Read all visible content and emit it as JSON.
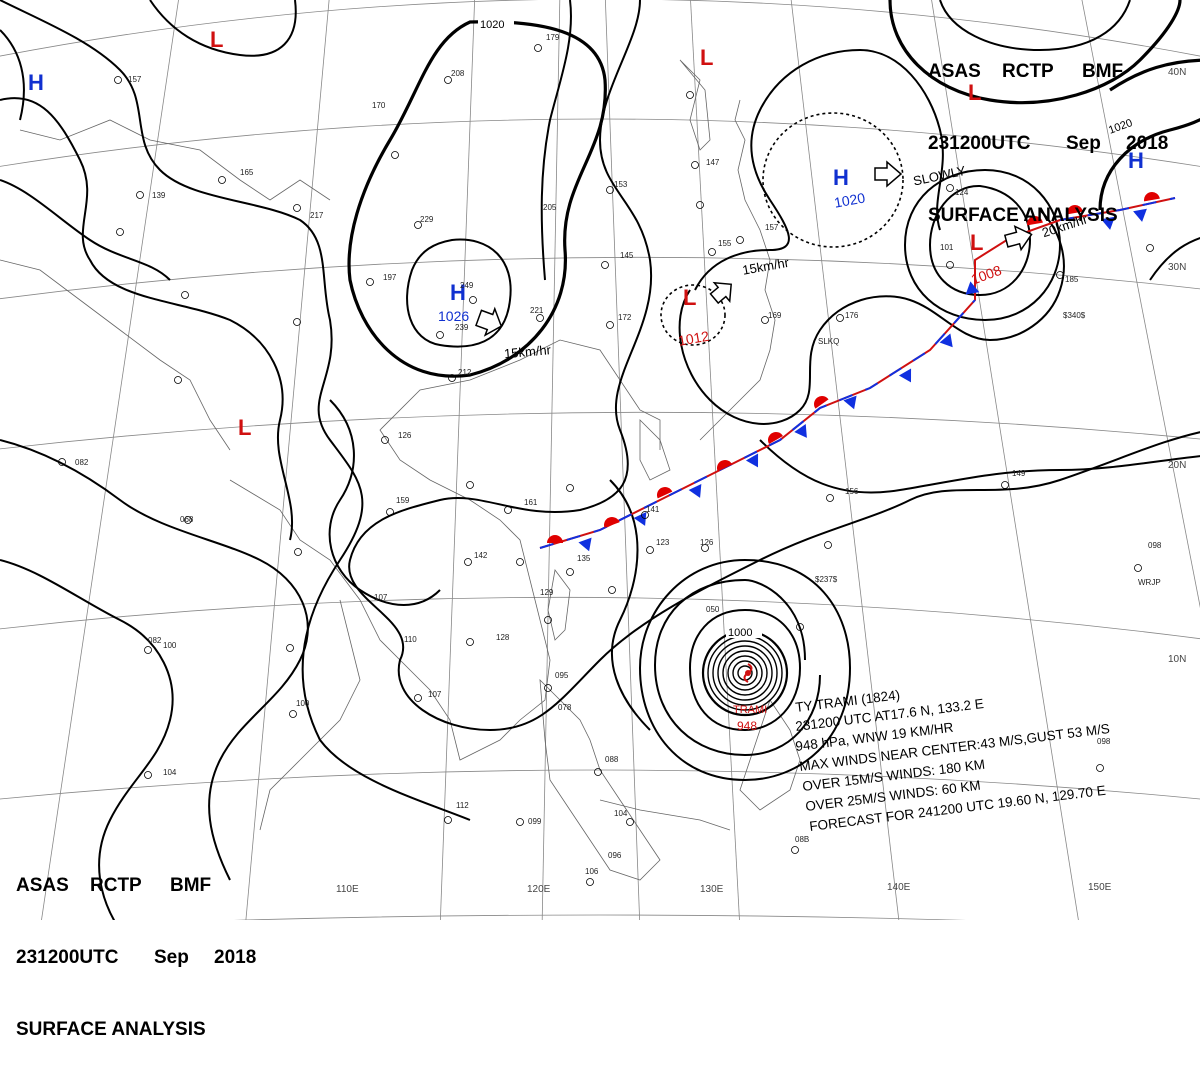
{
  "header": {
    "line1": [
      "ASAS",
      "RCTP",
      "BMF"
    ],
    "line2": [
      "231200UTC",
      "Sep",
      "2018"
    ],
    "line3": "SURFACE ANALYSIS"
  },
  "colors": {
    "high": "#1030d0",
    "low": "#d01010",
    "warm_front": "#e00000",
    "cold_front": "#1030e0",
    "isobar": "#000000",
    "grid": "#888888"
  },
  "lon_labels": [
    "110E",
    "120E",
    "130E",
    "140E",
    "150E"
  ],
  "lat_labels": [
    "40N",
    "30N",
    "20N",
    "10N"
  ],
  "isobar_labels": [
    "1020",
    "1020",
    "1000"
  ],
  "pressure_systems": [
    {
      "type": "H",
      "value": ""
    },
    {
      "type": "L",
      "value": ""
    },
    {
      "type": "H",
      "value": "1026"
    },
    {
      "type": "L",
      "value": ""
    },
    {
      "type": "L",
      "value": ""
    },
    {
      "type": "H",
      "value": "1020"
    },
    {
      "type": "L",
      "value": "1012"
    },
    {
      "type": "L",
      "value": "1008"
    },
    {
      "type": "L",
      "value": ""
    },
    {
      "type": "H",
      "value": ""
    }
  ],
  "movements": [
    "15km/hr",
    "15km/hr",
    "SLOWLY",
    "20km/hr"
  ],
  "typhoon": {
    "label": "TRAMI",
    "pressure": "948",
    "info": [
      "TY  TRAMI  (1824)",
      "231200 UTC  AT17.6 N, 133.2 E",
      "948 hPa, WNW  19 KM/HR",
      "MAX WINDS NEAR CENTER:43 M/S,GUST 53 M/S",
      "OVER 15M/S WINDS: 180 KM",
      "OVER 25M/S WINDS: 60 KM",
      "FORECAST FOR 241200 UTC 19.60 N, 129.70 E"
    ]
  },
  "station_labels": [
    "157",
    "170",
    "208",
    "179",
    "165",
    "139",
    "217",
    "229",
    "197",
    "249",
    "239",
    "212",
    "221",
    "153",
    "205",
    "145",
    "172",
    "147",
    "155",
    "157",
    "169",
    "176",
    "124",
    "101",
    "185",
    "126",
    "161",
    "159",
    "142",
    "135",
    "141",
    "123",
    "126",
    "156",
    "149",
    "129",
    "107",
    "110",
    "128",
    "100",
    "107",
    "095",
    "078",
    "088",
    "099",
    "112",
    "104",
    "096",
    "106",
    "098",
    "050",
    "08B",
    "082",
    "068",
    "100",
    "104",
    "082",
    "098",
    "SLKQ",
    "$340$",
    "$237$",
    "WRJP"
  ]
}
